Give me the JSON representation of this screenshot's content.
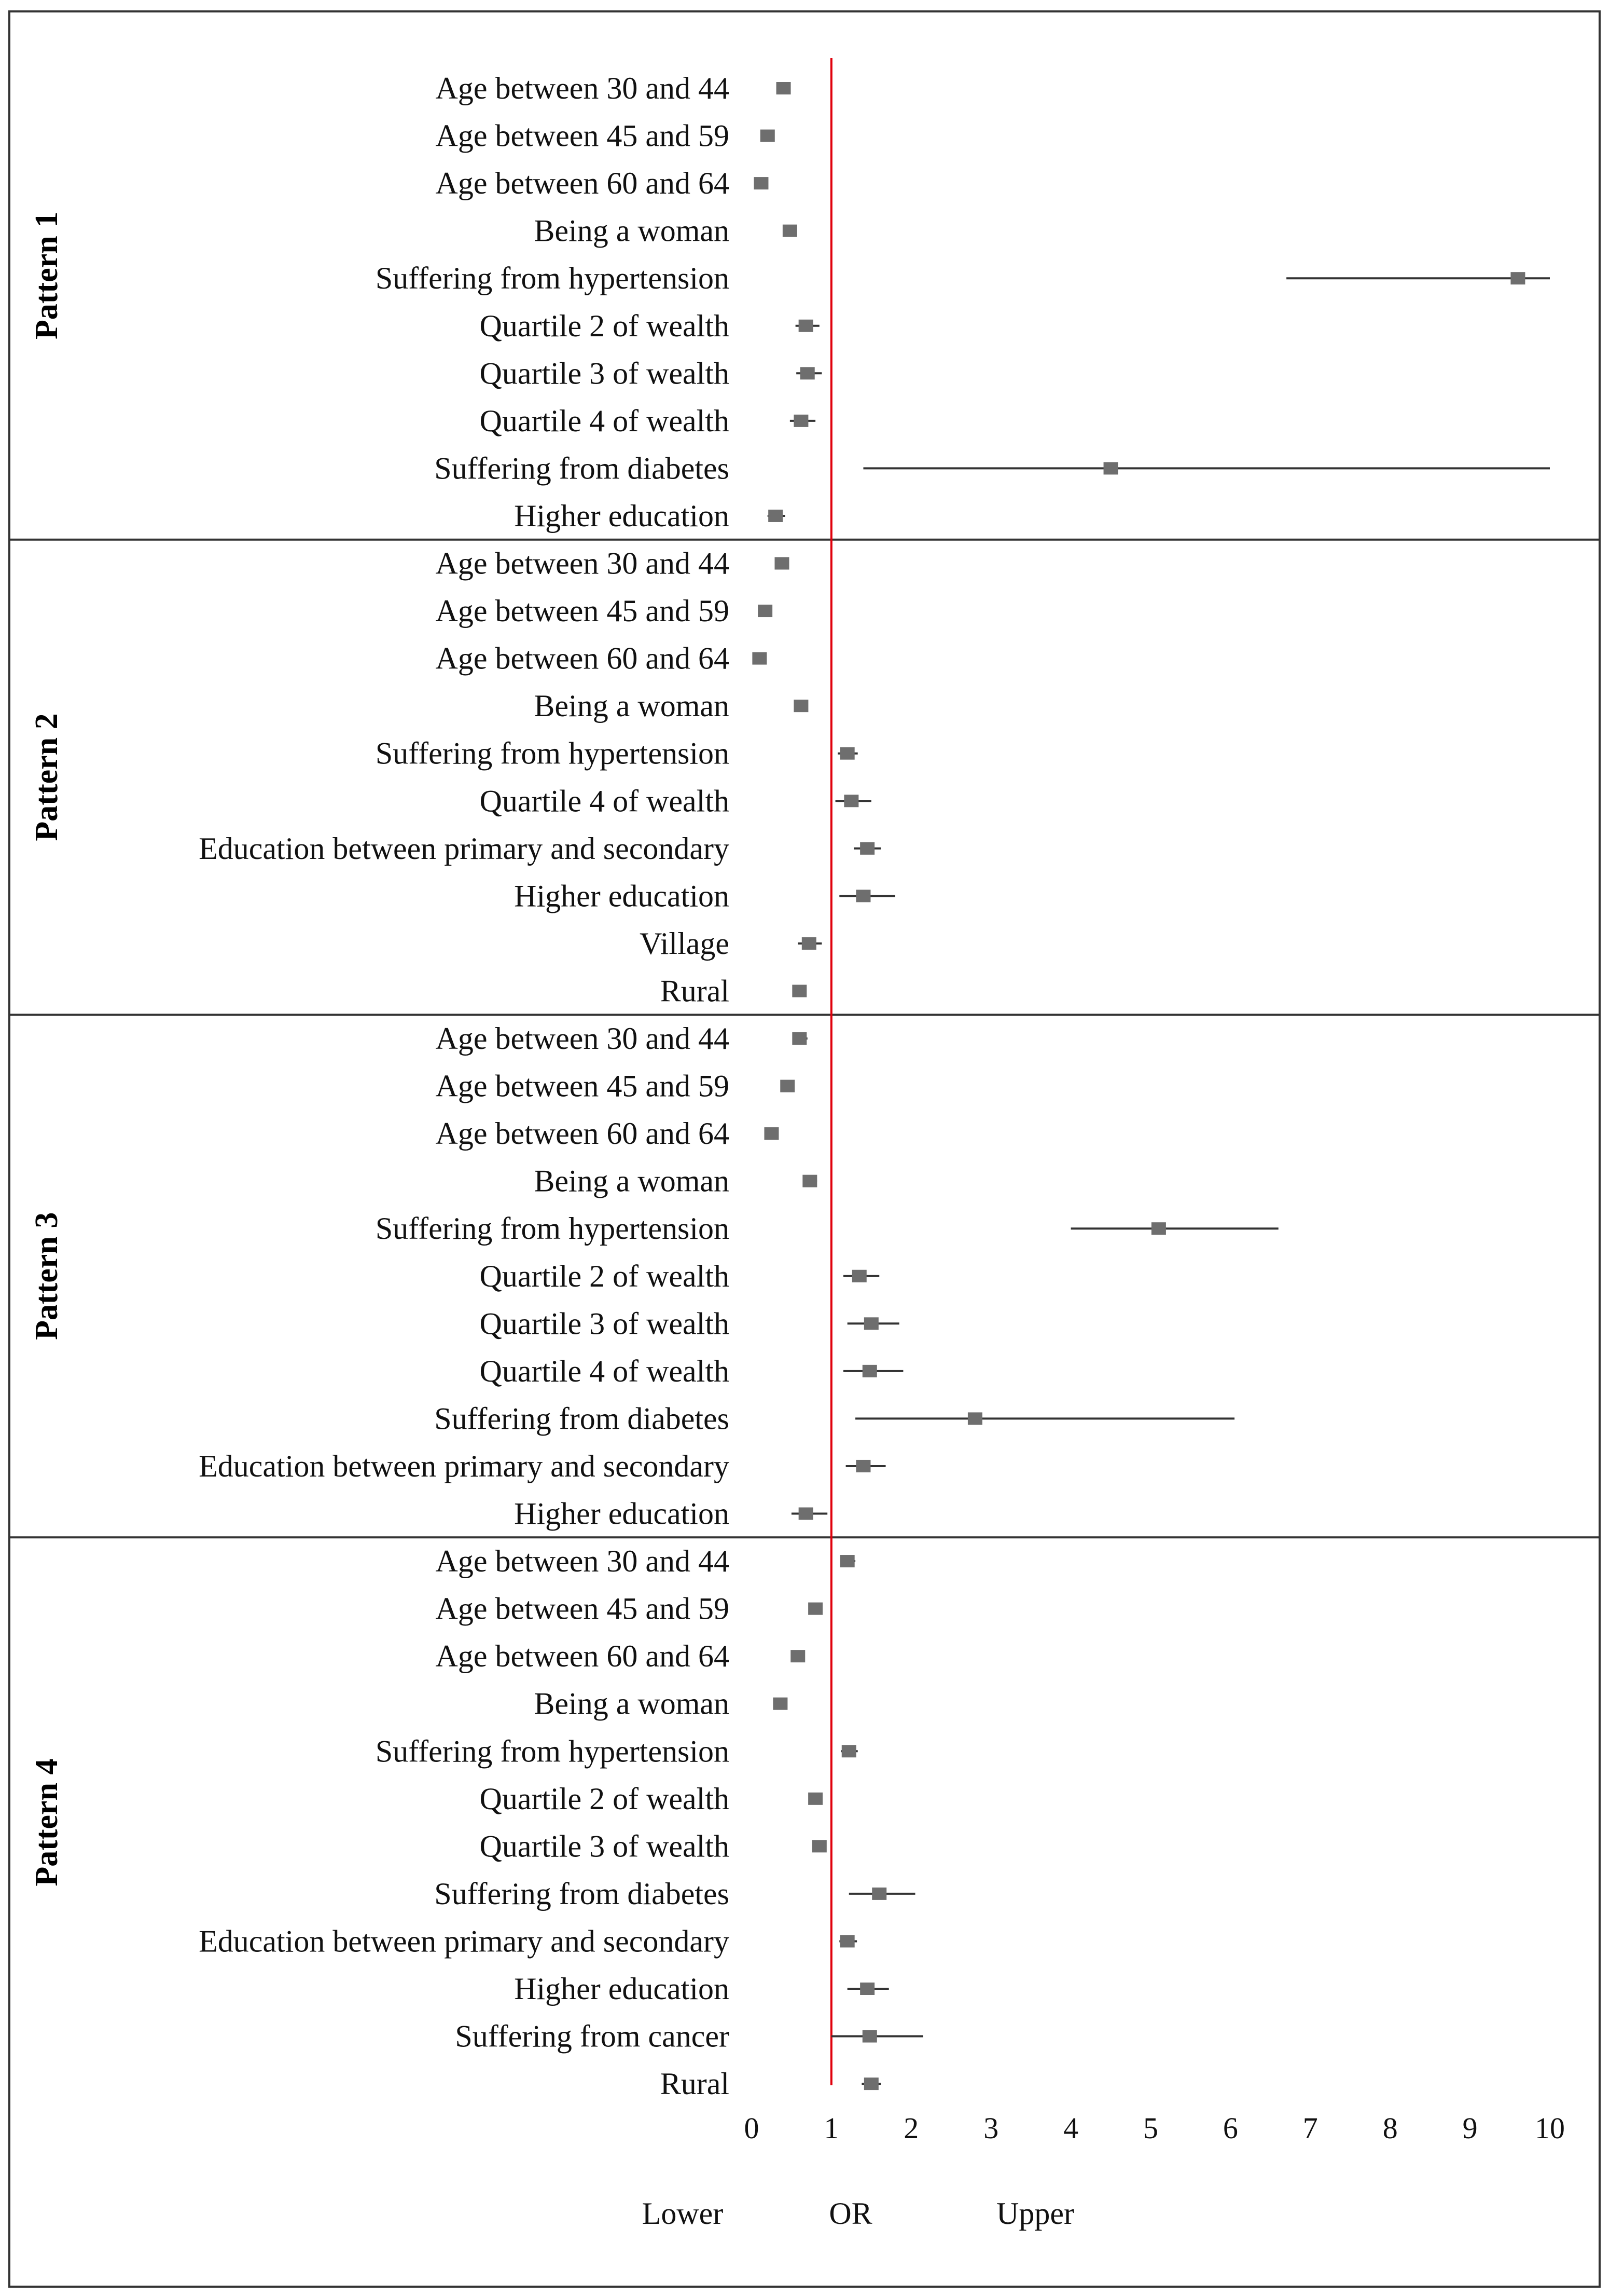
{
  "chart_data": {
    "type": "forest",
    "xlim": [
      0,
      10
    ],
    "x_ticks": [
      "0",
      "1",
      "2",
      "3",
      "4",
      "5",
      "6",
      "7",
      "8",
      "9",
      "10"
    ],
    "reference_line": 1,
    "colors": {
      "reference": "#e0000b",
      "marker": "#6e6e6e",
      "whisker": "#333333",
      "frame": "#333333"
    },
    "legend": [
      "Lower",
      "OR",
      "Upper"
    ],
    "groups": [
      {
        "name": "Pattern 1",
        "rows": [
          {
            "label": "Age between 30 and 44",
            "or": 0.4,
            "lower": 0.35,
            "upper": 0.47
          },
          {
            "label": "Age between 45 and 59",
            "or": 0.2,
            "lower": 0.16,
            "upper": 0.25
          },
          {
            "label": "Age between 60 and 64",
            "or": 0.12,
            "lower": 0.09,
            "upper": 0.16
          },
          {
            "label": "Being a woman",
            "or": 0.48,
            "lower": 0.42,
            "upper": 0.55
          },
          {
            "label": "Suffering from hypertension",
            "or": 9.6,
            "lower": 6.7,
            "upper": 10
          },
          {
            "label": "Quartile 2 of wealth",
            "or": 0.68,
            "lower": 0.55,
            "upper": 0.85
          },
          {
            "label": "Quartile 3 of wealth",
            "or": 0.7,
            "lower": 0.56,
            "upper": 0.88
          },
          {
            "label": "Quartile 4 of wealth",
            "or": 0.62,
            "lower": 0.48,
            "upper": 0.8
          },
          {
            "label": "Suffering from diabetes",
            "or": 4.5,
            "lower": 1.4,
            "upper": 10
          },
          {
            "label": "Higher education",
            "or": 0.3,
            "lower": 0.2,
            "upper": 0.42
          }
        ]
      },
      {
        "name": "Pattern 2",
        "rows": [
          {
            "label": "Age between 30 and 44",
            "or": 0.38,
            "lower": 0.32,
            "upper": 0.45
          },
          {
            "label": "Age between 45 and 59",
            "or": 0.17,
            "lower": 0.13,
            "upper": 0.22
          },
          {
            "label": "Age between 60 and 64",
            "or": 0.1,
            "lower": 0.07,
            "upper": 0.14
          },
          {
            "label": "Being a woman",
            "or": 0.62,
            "lower": 0.56,
            "upper": 0.7
          },
          {
            "label": "Suffering from hypertension",
            "or": 1.2,
            "lower": 1.08,
            "upper": 1.33
          },
          {
            "label": "Quartile 4 of wealth",
            "or": 1.25,
            "lower": 1.05,
            "upper": 1.5
          },
          {
            "label": "Education between primary and secondary",
            "or": 1.45,
            "lower": 1.28,
            "upper": 1.62
          },
          {
            "label": "Higher education",
            "or": 1.4,
            "lower": 1.1,
            "upper": 1.8
          },
          {
            "label": "Village",
            "or": 0.72,
            "lower": 0.58,
            "upper": 0.88
          },
          {
            "label": "Rural",
            "or": 0.6,
            "lower": 0.53,
            "upper": 0.68
          }
        ]
      },
      {
        "name": "Pattern 3",
        "rows": [
          {
            "label": "Age between 30 and 44",
            "or": 0.6,
            "lower": 0.52,
            "upper": 0.7
          },
          {
            "label": "Age between 45 and 59",
            "or": 0.45,
            "lower": 0.38,
            "upper": 0.52
          },
          {
            "label": "Age between 60 and 64",
            "or": 0.25,
            "lower": 0.19,
            "upper": 0.32
          },
          {
            "label": "Being a woman",
            "or": 0.73,
            "lower": 0.65,
            "upper": 0.82
          },
          {
            "label": "Suffering from hypertension",
            "or": 5.1,
            "lower": 4.0,
            "upper": 6.6
          },
          {
            "label": "Quartile 2 of wealth",
            "or": 1.35,
            "lower": 1.15,
            "upper": 1.6
          },
          {
            "label": "Quartile 3 of wealth",
            "or": 1.5,
            "lower": 1.2,
            "upper": 1.85
          },
          {
            "label": "Quartile 4 of wealth",
            "or": 1.48,
            "lower": 1.15,
            "upper": 1.9
          },
          {
            "label": "Suffering from diabetes",
            "or": 2.8,
            "lower": 1.3,
            "upper": 6.05
          },
          {
            "label": "Education between primary and secondary",
            "or": 1.4,
            "lower": 1.18,
            "upper": 1.68
          },
          {
            "label": "Higher education",
            "or": 0.68,
            "lower": 0.5,
            "upper": 0.95
          }
        ]
      },
      {
        "name": "Pattern 4",
        "rows": [
          {
            "label": "Age between 30 and 44",
            "or": 1.2,
            "lower": 1.12,
            "upper": 1.3
          },
          {
            "label": "Age between 45 and 59",
            "or": 0.8,
            "lower": 0.74,
            "upper": 0.87
          },
          {
            "label": "Age between 60 and 64",
            "or": 0.58,
            "lower": 0.52,
            "upper": 0.65
          },
          {
            "label": "Being a woman",
            "or": 0.36,
            "lower": 0.3,
            "upper": 0.42
          },
          {
            "label": "Suffering from hypertension",
            "or": 1.22,
            "lower": 1.12,
            "upper": 1.33
          },
          {
            "label": "Quartile 2 of wealth",
            "or": 0.8,
            "lower": 0.72,
            "upper": 0.88
          },
          {
            "label": "Quartile 3 of wealth",
            "or": 0.85,
            "lower": 0.77,
            "upper": 0.93
          },
          {
            "label": "Suffering from diabetes",
            "or": 1.6,
            "lower": 1.22,
            "upper": 2.05
          },
          {
            "label": "Education between primary and secondary",
            "or": 1.2,
            "lower": 1.1,
            "upper": 1.32
          },
          {
            "label": "Higher education",
            "or": 1.45,
            "lower": 1.2,
            "upper": 1.72
          },
          {
            "label": "Suffering from cancer",
            "or": 1.48,
            "lower": 1.0,
            "upper": 2.15
          },
          {
            "label": "Rural",
            "or": 1.5,
            "lower": 1.38,
            "upper": 1.62
          }
        ]
      }
    ]
  }
}
